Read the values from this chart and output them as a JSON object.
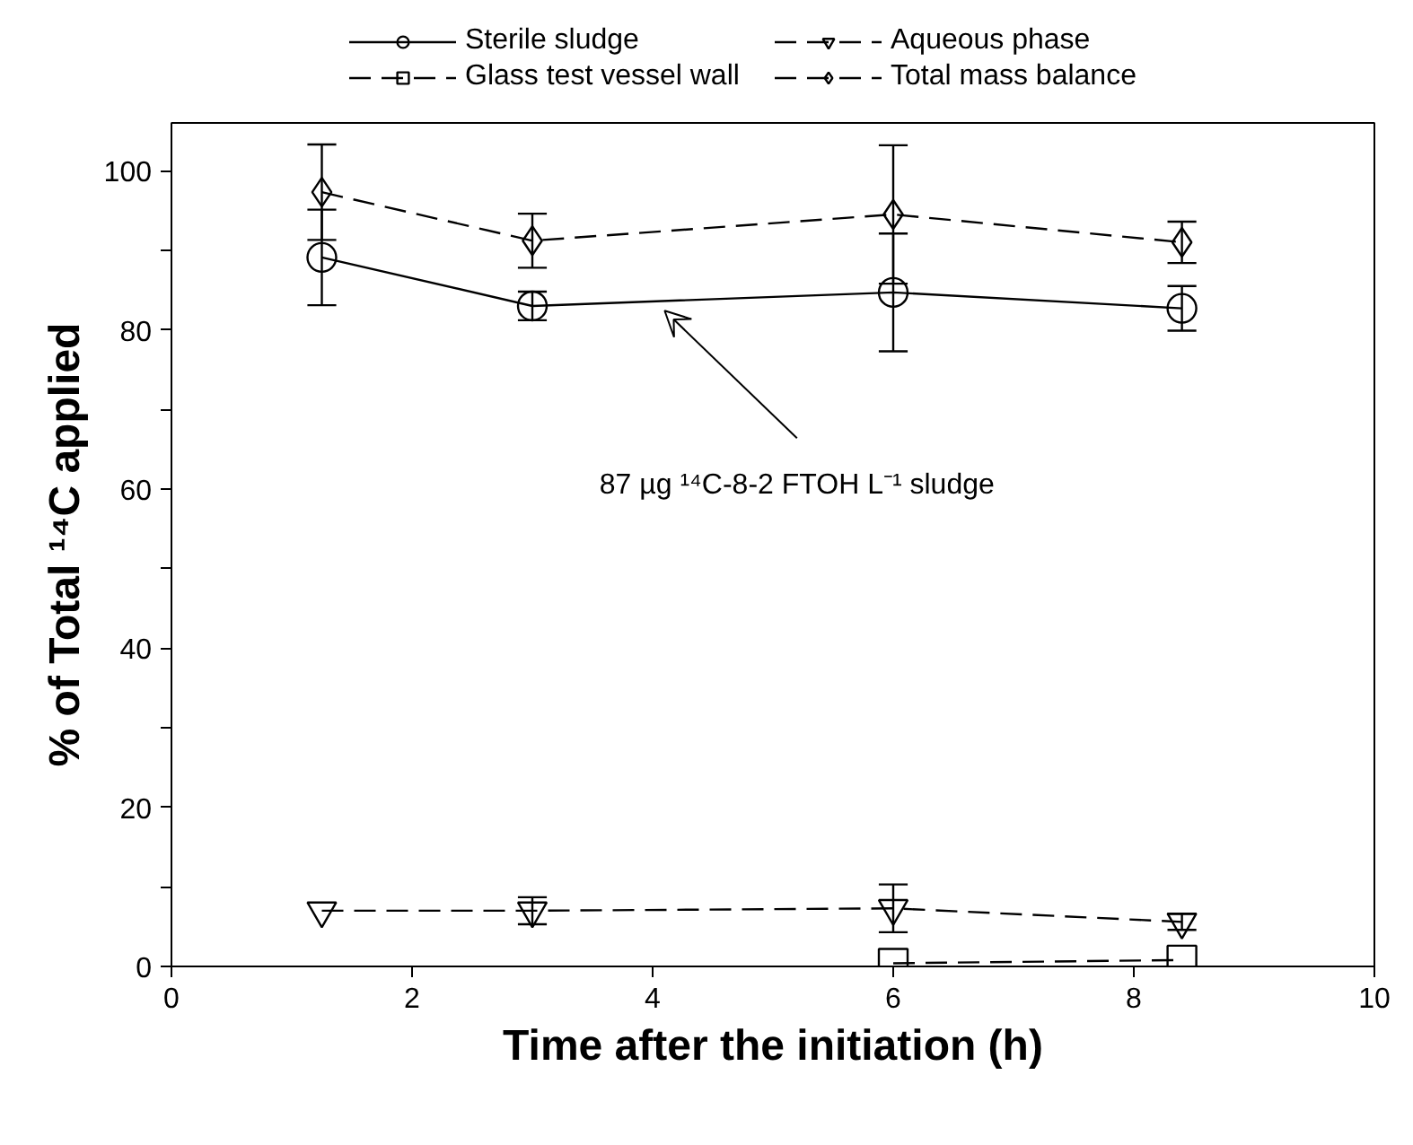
{
  "chart_data": {
    "type": "line",
    "xlabel": "Time after the initiation (h)",
    "ylabel": "% of Total ¹⁴C applied",
    "x": [
      1.25,
      3,
      6,
      8.4
    ],
    "series": [
      {
        "name": "Sterile sludge",
        "color": "#000000",
        "marker": "circle",
        "line_style": "solid",
        "values": [
          89.1,
          83.0,
          84.7,
          82.7
        ],
        "errors": [
          6.0,
          1.8,
          7.4,
          2.8
        ]
      },
      {
        "name": "Glass test vessel wall",
        "color": "#000000",
        "marker": "square",
        "line_style": "dashed",
        "x": [
          6,
          8.4
        ],
        "values": [
          0.4,
          0.8
        ]
      },
      {
        "name": "Aqueous phase",
        "color": "#000000",
        "marker": "triangle",
        "line_style": "dashed",
        "values": [
          7.0,
          7.0,
          7.3,
          5.6
        ],
        "errors": [
          null,
          1.7,
          3.0,
          1.0
        ]
      },
      {
        "name": "Total mass balance",
        "color": "#000000",
        "marker": "diamond",
        "line_style": "dashed",
        "values": [
          97.3,
          91.2,
          94.5,
          91.0
        ],
        "errors": [
          6.0,
          3.4,
          8.7,
          2.6
        ]
      }
    ],
    "xlim": [
      0,
      10
    ],
    "xticks": [
      0,
      2,
      4,
      6,
      8,
      10
    ],
    "ylim": [
      0,
      106
    ],
    "yticks": [
      0,
      {
        "value": 10,
        "label": null
      },
      20,
      {
        "value": 30,
        "label": null
      },
      40,
      {
        "value": 50,
        "label": null
      },
      60,
      {
        "value": 70,
        "label": null
      },
      80,
      {
        "value": 90,
        "label": null
      },
      100
    ],
    "annotations": [
      {
        "text": "87 µg ¹⁴C-8-2 FTOH L⁻¹ sludge",
        "x": 4.1,
        "y": 82.4
      }
    ],
    "grid": false,
    "legend": "top"
  }
}
